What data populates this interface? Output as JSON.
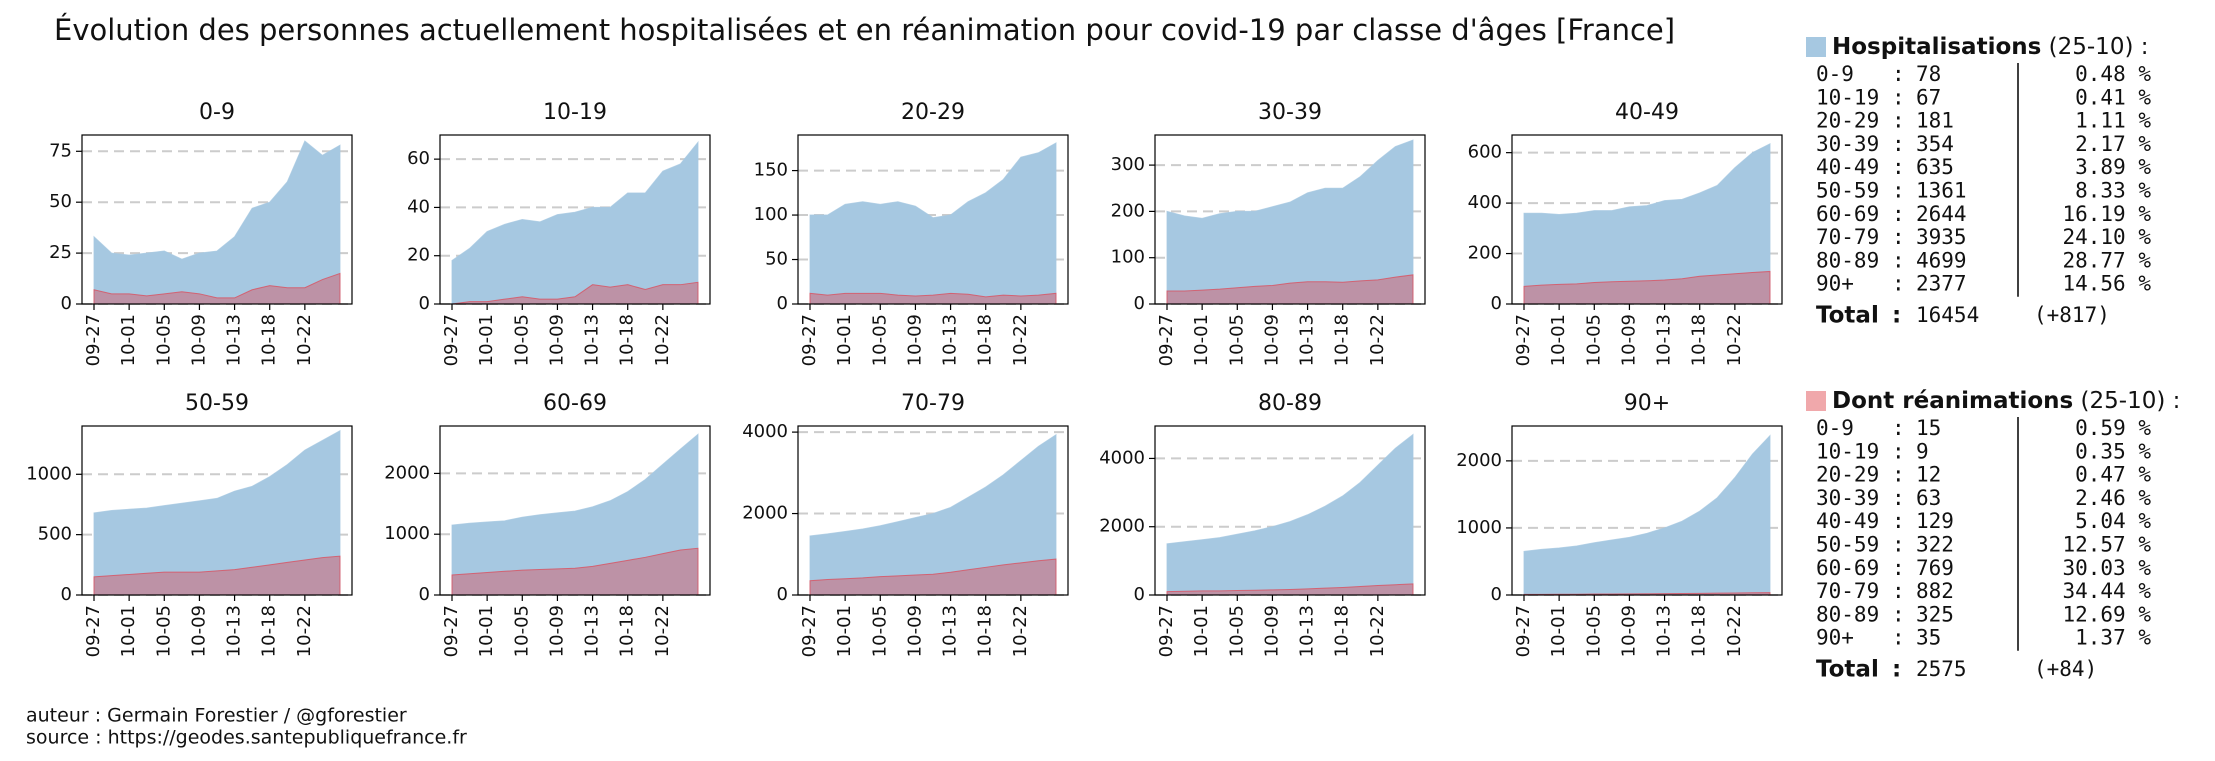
{
  "title": "Évolution des personnes actuellement hospitalisées et en réanimation pour covid-19 par classe d'âges [France]",
  "chart_data": [
    {
      "type": "area",
      "title": "0-9",
      "categories": [
        "09-27",
        null,
        "10-01",
        null,
        "10-05",
        null,
        "10-09",
        null,
        "10-13",
        null,
        "10-18",
        null,
        "10-22",
        null,
        null
      ],
      "ylim": [
        0,
        83
      ],
      "yticks": [
        0,
        25,
        50,
        75
      ],
      "grid": true,
      "series": [
        {
          "color": "#a6c8e1",
          "values": [
            33,
            25,
            24,
            25,
            26,
            22,
            25,
            26,
            33,
            47,
            50,
            60,
            80,
            73,
            78
          ]
        },
        {
          "color": "#d9505f",
          "values": [
            7,
            5,
            5,
            4,
            5,
            6,
            5,
            3,
            3,
            7,
            9,
            8,
            8,
            12,
            15
          ]
        }
      ]
    },
    {
      "type": "area",
      "title": "10-19",
      "categories": [
        "09-27",
        null,
        "10-01",
        null,
        "10-05",
        null,
        "10-09",
        null,
        "10-13",
        null,
        "10-18",
        null,
        "10-22",
        null,
        null
      ],
      "ylim": [
        0,
        70
      ],
      "yticks": [
        0,
        20,
        40,
        60
      ],
      "grid": true,
      "series": [
        {
          "color": "#a6c8e1",
          "values": [
            18,
            23,
            30,
            33,
            35,
            34,
            37,
            38,
            40,
            40,
            46,
            46,
            55,
            58,
            67
          ]
        },
        {
          "color": "#d9505f",
          "values": [
            0,
            1,
            1,
            2,
            3,
            2,
            2,
            3,
            8,
            7,
            8,
            6,
            8,
            8,
            9
          ]
        }
      ]
    },
    {
      "type": "area",
      "title": "20-29",
      "categories": [
        "09-27",
        null,
        "10-01",
        null,
        "10-05",
        null,
        "10-09",
        null,
        "10-13",
        null,
        "10-18",
        null,
        "10-22",
        null,
        null
      ],
      "ylim": [
        0,
        190
      ],
      "yticks": [
        0,
        50,
        100,
        150
      ],
      "grid": true,
      "series": [
        {
          "color": "#a6c8e1",
          "values": [
            100,
            100,
            112,
            115,
            112,
            115,
            110,
            97,
            100,
            115,
            125,
            140,
            165,
            170,
            181
          ]
        },
        {
          "color": "#d9505f",
          "values": [
            12,
            10,
            12,
            12,
            12,
            10,
            9,
            10,
            12,
            11,
            8,
            10,
            9,
            10,
            12
          ]
        }
      ]
    },
    {
      "type": "area",
      "title": "30-39",
      "categories": [
        "09-27",
        null,
        "10-01",
        null,
        "10-05",
        null,
        "10-09",
        null,
        "10-13",
        null,
        "10-18",
        null,
        "10-22",
        null,
        null
      ],
      "ylim": [
        0,
        365
      ],
      "yticks": [
        0,
        100,
        200,
        300
      ],
      "grid": true,
      "series": [
        {
          "color": "#a6c8e1",
          "values": [
            200,
            190,
            185,
            195,
            200,
            200,
            210,
            220,
            240,
            250,
            250,
            275,
            310,
            340,
            354
          ]
        },
        {
          "color": "#d9505f",
          "values": [
            28,
            28,
            30,
            32,
            35,
            38,
            40,
            45,
            48,
            48,
            47,
            50,
            52,
            58,
            63
          ]
        }
      ]
    },
    {
      "type": "area",
      "title": "40-49",
      "categories": [
        "09-27",
        null,
        "10-01",
        null,
        "10-05",
        null,
        "10-09",
        null,
        "10-13",
        null,
        "10-18",
        null,
        "10-22",
        null,
        null
      ],
      "ylim": [
        0,
        670
      ],
      "yticks": [
        0,
        200,
        400,
        600
      ],
      "grid": true,
      "series": [
        {
          "color": "#a6c8e1",
          "values": [
            360,
            360,
            355,
            360,
            370,
            370,
            385,
            390,
            410,
            415,
            440,
            470,
            540,
            600,
            635
          ]
        },
        {
          "color": "#d9505f",
          "values": [
            70,
            75,
            78,
            80,
            85,
            88,
            90,
            92,
            95,
            100,
            110,
            115,
            120,
            125,
            129
          ]
        }
      ]
    },
    {
      "type": "area",
      "title": "50-59",
      "categories": [
        "09-27",
        null,
        "10-01",
        null,
        "10-05",
        null,
        "10-09",
        null,
        "10-13",
        null,
        "10-18",
        null,
        "10-22",
        null,
        null
      ],
      "ylim": [
        0,
        1400
      ],
      "yticks": [
        0,
        500,
        1000
      ],
      "grid": true,
      "series": [
        {
          "color": "#a6c8e1",
          "values": [
            680,
            700,
            710,
            720,
            740,
            760,
            780,
            800,
            860,
            900,
            980,
            1080,
            1200,
            1280,
            1361
          ]
        },
        {
          "color": "#d9505f",
          "values": [
            150,
            160,
            170,
            180,
            190,
            190,
            190,
            200,
            210,
            230,
            250,
            270,
            290,
            310,
            322
          ]
        }
      ]
    },
    {
      "type": "area",
      "title": "60-69",
      "categories": [
        "09-27",
        null,
        "10-01",
        null,
        "10-05",
        null,
        "10-09",
        null,
        "10-13",
        null,
        "10-18",
        null,
        "10-22",
        null,
        null
      ],
      "ylim": [
        0,
        2780
      ],
      "yticks": [
        0,
        1000,
        2000
      ],
      "grid": true,
      "series": [
        {
          "color": "#a6c8e1",
          "values": [
            1150,
            1180,
            1200,
            1220,
            1280,
            1320,
            1350,
            1380,
            1450,
            1550,
            1700,
            1900,
            2150,
            2400,
            2644
          ]
        },
        {
          "color": "#d9505f",
          "values": [
            330,
            350,
            370,
            390,
            410,
            420,
            430,
            440,
            470,
            520,
            570,
            620,
            680,
            740,
            769
          ]
        }
      ]
    },
    {
      "type": "area",
      "title": "70-79",
      "categories": [
        "09-27",
        null,
        "10-01",
        null,
        "10-05",
        null,
        "10-09",
        null,
        "10-13",
        null,
        "10-18",
        null,
        "10-22",
        null,
        null
      ],
      "ylim": [
        0,
        4150
      ],
      "yticks": [
        0,
        2000,
        4000
      ],
      "grid": true,
      "series": [
        {
          "color": "#a6c8e1",
          "values": [
            1450,
            1500,
            1560,
            1620,
            1700,
            1800,
            1900,
            2000,
            2150,
            2400,
            2650,
            2950,
            3300,
            3650,
            3935
          ]
        },
        {
          "color": "#d9505f",
          "values": [
            350,
            380,
            400,
            420,
            450,
            470,
            490,
            510,
            560,
            620,
            680,
            740,
            790,
            840,
            882
          ]
        }
      ]
    },
    {
      "type": "area",
      "title": "80-89",
      "categories": [
        "09-27",
        null,
        "10-01",
        null,
        "10-05",
        null,
        "10-09",
        null,
        "10-13",
        null,
        "10-18",
        null,
        "10-22",
        null,
        null
      ],
      "ylim": [
        0,
        4950
      ],
      "yticks": [
        0,
        2000,
        4000
      ],
      "grid": true,
      "series": [
        {
          "color": "#a6c8e1",
          "values": [
            1500,
            1560,
            1620,
            1680,
            1780,
            1880,
            2000,
            2150,
            2350,
            2600,
            2900,
            3300,
            3800,
            4300,
            4699
          ]
        },
        {
          "color": "#d9505f",
          "values": [
            100,
            110,
            120,
            120,
            130,
            140,
            150,
            160,
            180,
            200,
            220,
            250,
            280,
            300,
            325
          ]
        }
      ]
    },
    {
      "type": "area",
      "title": "90+",
      "categories": [
        "09-27",
        null,
        "10-01",
        null,
        "10-05",
        null,
        "10-09",
        null,
        "10-13",
        null,
        "10-18",
        null,
        "10-22",
        null,
        null
      ],
      "ylim": [
        0,
        2520
      ],
      "yticks": [
        0,
        1000,
        2000
      ],
      "grid": true,
      "series": [
        {
          "color": "#a6c8e1",
          "values": [
            650,
            680,
            700,
            730,
            780,
            820,
            860,
            920,
            1000,
            1100,
            1250,
            1450,
            1750,
            2100,
            2377
          ]
        },
        {
          "color": "#d9505f",
          "values": [
            10,
            10,
            12,
            12,
            14,
            15,
            16,
            18,
            20,
            22,
            25,
            28,
            30,
            33,
            35
          ]
        }
      ]
    }
  ],
  "summary": [
    {
      "title": "Hospitalisations",
      "date": "(25-10) :",
      "color": "#a6c8e1",
      "separator": ":",
      "total_label": "Total",
      "total": 16454,
      "delta": "(+817)",
      "rows": [
        {
          "age": "0-9",
          "count": 78,
          "pct": "0.48 %"
        },
        {
          "age": "10-19",
          "count": 67,
          "pct": "0.41 %"
        },
        {
          "age": "20-29",
          "count": 181,
          "pct": "1.11 %"
        },
        {
          "age": "30-39",
          "count": 354,
          "pct": "2.17 %"
        },
        {
          "age": "40-49",
          "count": 635,
          "pct": "3.89 %"
        },
        {
          "age": "50-59",
          "count": 1361,
          "pct": "8.33 %"
        },
        {
          "age": "60-69",
          "count": 2644,
          "pct": "16.19 %"
        },
        {
          "age": "70-79",
          "count": 3935,
          "pct": "24.10 %"
        },
        {
          "age": "80-89",
          "count": 4699,
          "pct": "28.77 %"
        },
        {
          "age": "90+",
          "count": 2377,
          "pct": "14.56 %"
        }
      ]
    },
    {
      "title": "Dont réanimations",
      "date": "(25-10) :",
      "color": "#f0a8ab",
      "separator": ":",
      "total_label": "Total",
      "total": 2575,
      "delta": "(+84)",
      "rows": [
        {
          "age": "0-9",
          "count": 15,
          "pct": "0.59 %"
        },
        {
          "age": "10-19",
          "count": 9,
          "pct": "0.35 %"
        },
        {
          "age": "20-29",
          "count": 12,
          "pct": "0.47 %"
        },
        {
          "age": "30-39",
          "count": 63,
          "pct": "2.46 %"
        },
        {
          "age": "40-49",
          "count": 129,
          "pct": "5.04 %"
        },
        {
          "age": "50-59",
          "count": 322,
          "pct": "12.57 %"
        },
        {
          "age": "60-69",
          "count": 769,
          "pct": "30.03 %"
        },
        {
          "age": "70-79",
          "count": 882,
          "pct": "34.44 %"
        },
        {
          "age": "80-89",
          "count": 325,
          "pct": "12.69 %"
        },
        {
          "age": "90+",
          "count": 35,
          "pct": "1.37 %"
        }
      ]
    }
  ],
  "footer": [
    "auteur : Germain Forestier / @gforestier",
    "source : https://geodes.santepubliquefrance.fr"
  ]
}
